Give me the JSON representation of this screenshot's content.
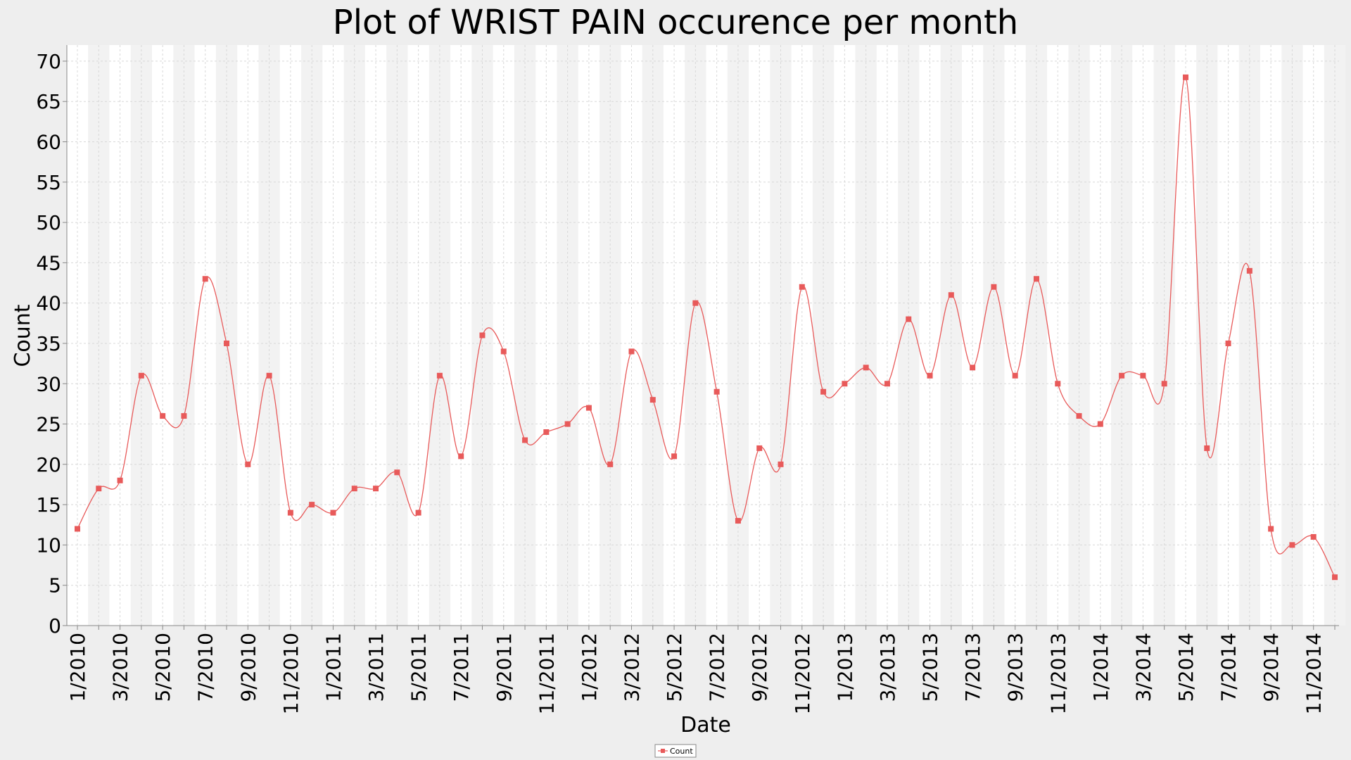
{
  "chart_data": {
    "type": "line",
    "title": "Plot of WRIST PAIN occurence per month",
    "xlabel": "Date",
    "ylabel": "Count",
    "ylim": [
      0,
      72
    ],
    "yticks": [
      0,
      5,
      10,
      15,
      20,
      25,
      30,
      35,
      40,
      45,
      50,
      55,
      60,
      65,
      70
    ],
    "x_tick_labels": [
      "1/2010",
      "3/2010",
      "5/2010",
      "7/2010",
      "9/2010",
      "11/2010",
      "1/2011",
      "3/2011",
      "5/2011",
      "7/2011",
      "9/2011",
      "11/2011",
      "1/2012",
      "3/2012",
      "5/2012",
      "7/2012",
      "9/2012",
      "11/2012",
      "1/2013",
      "3/2013",
      "5/2013",
      "7/2013",
      "9/2013",
      "11/2013",
      "1/2014",
      "3/2014",
      "5/2014",
      "7/2014",
      "9/2014",
      "11/2014"
    ],
    "grid": true,
    "legend_position": "bottom-center",
    "colors": {
      "series": "#e85a5a",
      "band": "#f2f2f2",
      "plot_bg": "#ffffff",
      "page_bg": "#eeeeee",
      "grid": "#d8d8d8"
    },
    "series": [
      {
        "name": "Count",
        "x": [
          "1/2010",
          "2/2010",
          "3/2010",
          "4/2010",
          "5/2010",
          "6/2010",
          "7/2010",
          "8/2010",
          "9/2010",
          "10/2010",
          "11/2010",
          "12/2010",
          "1/2011",
          "2/2011",
          "3/2011",
          "4/2011",
          "5/2011",
          "6/2011",
          "7/2011",
          "8/2011",
          "9/2011",
          "10/2011",
          "11/2011",
          "12/2011",
          "1/2012",
          "2/2012",
          "3/2012",
          "4/2012",
          "5/2012",
          "6/2012",
          "7/2012",
          "8/2012",
          "9/2012",
          "10/2012",
          "11/2012",
          "12/2012",
          "1/2013",
          "2/2013",
          "3/2013",
          "4/2013",
          "5/2013",
          "6/2013",
          "7/2013",
          "8/2013",
          "9/2013",
          "10/2013",
          "11/2013",
          "12/2013",
          "1/2014",
          "2/2014",
          "3/2014",
          "4/2014",
          "5/2014",
          "6/2014",
          "7/2014",
          "8/2014",
          "9/2014",
          "10/2014",
          "11/2014",
          "12/2014"
        ],
        "values": [
          12,
          17,
          18,
          31,
          26,
          26,
          43,
          35,
          20,
          31,
          14,
          15,
          14,
          17,
          17,
          19,
          14,
          31,
          21,
          36,
          34,
          23,
          24,
          25,
          27,
          20,
          34,
          28,
          21,
          40,
          29,
          13,
          22,
          20,
          42,
          29,
          30,
          32,
          30,
          38,
          31,
          41,
          32,
          42,
          31,
          43,
          30,
          26,
          25,
          31,
          31,
          30,
          68,
          22,
          35,
          44,
          12,
          10,
          11,
          6
        ]
      }
    ]
  }
}
